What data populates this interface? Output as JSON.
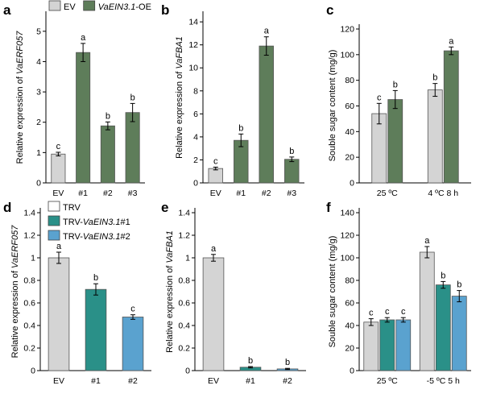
{
  "colors": {
    "ev_gray": "#d4d4d4",
    "oe_green": "#5e7d5a",
    "trv1_teal": "#2a9088",
    "trv2_blue": "#5aa2cf",
    "errorbar": "#000000"
  },
  "chart_data": [
    {
      "panel": "a",
      "type": "bar",
      "ylabel_prefix": "Relative expression of ",
      "ylabel_gene": "VaERF057",
      "ylim": [
        0,
        5.5
      ],
      "yticks": [
        0,
        1,
        2,
        3,
        4,
        5
      ],
      "tick_decimals": 0,
      "categories": [
        "EV",
        "#1",
        "#2",
        "#3"
      ],
      "values": [
        0.95,
        4.3,
        1.88,
        2.32
      ],
      "errors": [
        0.06,
        0.3,
        0.13,
        0.3
      ],
      "significance": [
        "c",
        "a",
        "b",
        "b"
      ],
      "bar_colors": [
        "#d4d4d4",
        "#5e7d5a",
        "#5e7d5a",
        "#5e7d5a"
      ],
      "legend": [
        {
          "label": "EV",
          "italic": "",
          "suffix": "",
          "color": "#d4d4d4"
        },
        {
          "label": "",
          "italic": "VaEIN3.1",
          "suffix": "-OE",
          "color": "#5e7d5a"
        }
      ]
    },
    {
      "panel": "b",
      "type": "bar",
      "ylabel_prefix": "Relative expression of ",
      "ylabel_gene": "VaFBA1",
      "ylim": [
        0,
        14.5
      ],
      "yticks": [
        0,
        2,
        4,
        6,
        8,
        10,
        12,
        14
      ],
      "tick_decimals": 0,
      "categories": [
        "EV",
        "#1",
        "#2",
        "#3"
      ],
      "values": [
        1.25,
        3.7,
        11.9,
        2.05
      ],
      "errors": [
        0.12,
        0.55,
        0.8,
        0.2
      ],
      "significance": [
        "c",
        "b",
        "a",
        "b"
      ],
      "bar_colors": [
        "#d4d4d4",
        "#5e7d5a",
        "#5e7d5a",
        "#5e7d5a"
      ]
    },
    {
      "panel": "c",
      "type": "bar",
      "ylabel": "Souble sugar content (mg/g)",
      "ylim": [
        0,
        120
      ],
      "yticks": [
        0,
        20,
        40,
        60,
        80,
        100,
        120
      ],
      "tick_decimals": 0,
      "categories": [
        "25 ºC",
        "4 ºC 8 h"
      ],
      "series": [
        {
          "values": [
            54,
            72.5
          ],
          "errors": [
            8,
            5
          ],
          "significance": [
            "c",
            "b"
          ],
          "color": "#d4d4d4"
        },
        {
          "values": [
            65,
            103
          ],
          "errors": [
            7,
            3
          ],
          "significance": [
            "b",
            "a"
          ],
          "color": "#5e7d5a"
        }
      ]
    },
    {
      "panel": "d",
      "type": "bar",
      "ylabel_prefix": "Relative expression of ",
      "ylabel_gene": "VaERF057",
      "ylim": [
        0,
        1.4
      ],
      "yticks": [
        0,
        0.2,
        0.4,
        0.6,
        0.8,
        1,
        1.2,
        1.4
      ],
      "tick_decimals": 1,
      "categories": [
        "EV",
        "#1",
        "#2"
      ],
      "values": [
        1.0,
        0.72,
        0.475
      ],
      "errors": [
        0.05,
        0.05,
        0.02
      ],
      "significance": [
        "a",
        "b",
        "c"
      ],
      "bar_colors": [
        "#d4d4d4",
        "#2a9088",
        "#5aa2cf"
      ],
      "legend": [
        {
          "label": "TRV",
          "italic": "",
          "suffix": "",
          "color": "#ffffff"
        },
        {
          "label": "TRV-",
          "italic": "VaEIN3.1",
          "suffix": "#1",
          "color": "#2a9088"
        },
        {
          "label": "TRV-",
          "italic": "VaEIN3.1",
          "suffix": "#2",
          "color": "#5aa2cf"
        }
      ]
    },
    {
      "panel": "e",
      "type": "bar",
      "ylabel_prefix": "Relative expression of ",
      "ylabel_gene": "VaFBA1",
      "ylim": [
        0,
        1.4
      ],
      "yticks": [
        0,
        0.2,
        0.4,
        0.6,
        0.8,
        1,
        1.2,
        1.4
      ],
      "tick_decimals": 1,
      "categories": [
        "EV",
        "#1",
        "#2"
      ],
      "values": [
        1.0,
        0.03,
        0.015
      ],
      "errors": [
        0.03,
        0.006,
        0.005
      ],
      "significance": [
        "a",
        "b",
        "b"
      ],
      "bar_colors": [
        "#d4d4d4",
        "#2a9088",
        "#5aa2cf"
      ]
    },
    {
      "panel": "f",
      "type": "bar",
      "ylabel": "Souble sugar content (mg/g)",
      "ylim": [
        0,
        140
      ],
      "yticks": [
        0,
        20,
        40,
        60,
        80,
        100,
        120,
        140
      ],
      "tick_decimals": 0,
      "categories": [
        "25 ºC",
        "-5 ºC 5 h"
      ],
      "series": [
        {
          "values": [
            43,
            105
          ],
          "errors": [
            3,
            5
          ],
          "significance": [
            "c",
            "a"
          ],
          "color": "#d4d4d4"
        },
        {
          "values": [
            45,
            76
          ],
          "errors": [
            2,
            3
          ],
          "significance": [
            "c",
            "b"
          ],
          "color": "#2a9088"
        },
        {
          "values": [
            45,
            66
          ],
          "errors": [
            2,
            5
          ],
          "significance": [
            "c",
            "b"
          ],
          "color": "#5aa2cf"
        }
      ]
    }
  ]
}
